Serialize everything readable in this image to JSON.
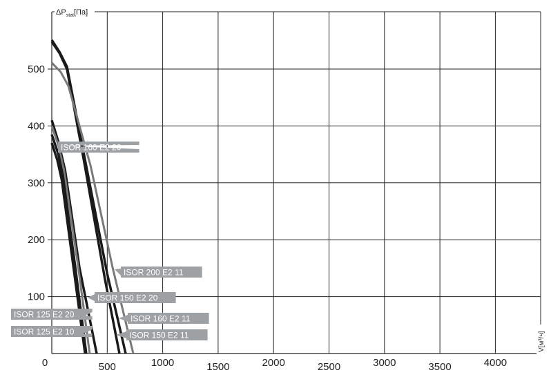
{
  "chart_data": {
    "type": "line",
    "ylabel": "ΔP",
    "ylabel_sub": "stat",
    "ylabel_unit": "[Па]",
    "xlabel": "V[м³/ч]",
    "xlim": [
      0,
      4400
    ],
    "ylim": [
      0,
      600
    ],
    "grid": true,
    "x_ticks": [
      0,
      500,
      1000,
      1500,
      2000,
      2500,
      3000,
      3500,
      4000
    ],
    "y_ticks": [
      100,
      200,
      300,
      400,
      500
    ],
    "colors": {
      "black": "#1a1a1a",
      "gray": "#77797b",
      "label_bg": "#9ea1a3"
    },
    "series": [
      {
        "name": "ISOR 160 E2 11",
        "color": "black",
        "points": [
          [
            0,
            551
          ],
          [
            70,
            530
          ],
          [
            137,
            504
          ],
          [
            300,
            340
          ],
          [
            500,
            140
          ],
          [
            666,
            0
          ]
        ]
      },
      {
        "name": "ISOR 150 E2 11",
        "color": "black",
        "points": [
          [
            0,
            548
          ],
          [
            70,
            528
          ],
          [
            137,
            500
          ],
          [
            300,
            328
          ],
          [
            480,
            130
          ],
          [
            610,
            0
          ]
        ]
      },
      {
        "name": "ISOR 200 E2 11",
        "color": "gray",
        "points": [
          [
            0,
            511
          ],
          [
            80,
            495
          ],
          [
            150,
            470
          ],
          [
            350,
            330
          ],
          [
            550,
            150
          ],
          [
            735,
            0
          ]
        ]
      },
      {
        "name": "ISOR 150 E2 20",
        "color": "black",
        "points": [
          [
            0,
            410
          ],
          [
            60,
            372
          ],
          [
            120,
            322
          ],
          [
            250,
            150
          ],
          [
            405,
            0
          ]
        ]
      },
      {
        "name": "ISOR 160 E2 20",
        "color": "gray",
        "points": [
          [
            0,
            400
          ],
          [
            60,
            366
          ],
          [
            110,
            322
          ],
          [
            240,
            150
          ],
          [
            342,
            0
          ]
        ]
      },
      {
        "name": "ISOR 125 E2 20",
        "color": "black",
        "points": [
          [
            0,
            385
          ],
          [
            60,
            350
          ],
          [
            100,
            312
          ],
          [
            210,
            155
          ],
          [
            311,
            0
          ]
        ]
      },
      {
        "name": "ISOR 125 E2 10",
        "color": "black",
        "points": [
          [
            0,
            370
          ],
          [
            50,
            340
          ],
          [
            90,
            305
          ],
          [
            190,
            160
          ],
          [
            300,
            0
          ]
        ]
      }
    ]
  }
}
